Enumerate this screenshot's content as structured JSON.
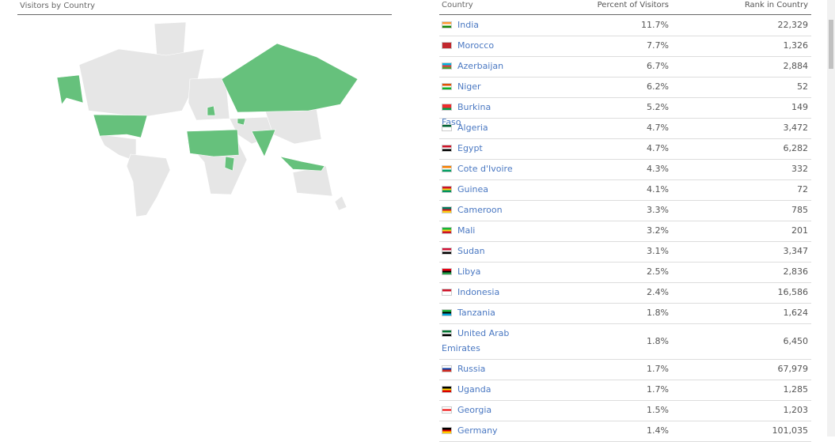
{
  "header": {
    "title": "Visitors by Country"
  },
  "table": {
    "columns": [
      "Country",
      "Percent of Visitors",
      "Rank in Country"
    ],
    "rows": [
      [
        "India",
        "11.7%",
        "22,329"
      ],
      [
        "Morocco",
        "7.7%",
        "1,326"
      ],
      [
        "Azerbaijan",
        "6.7%",
        "2,884"
      ],
      [
        "Niger",
        "6.2%",
        "52"
      ],
      [
        "Burkina Faso",
        "5.2%",
        "149"
      ],
      [
        "Algeria",
        "4.7%",
        "3,472"
      ],
      [
        "Egypt",
        "4.7%",
        "6,282"
      ],
      [
        "Cote d'Ivoire",
        "4.3%",
        "332"
      ],
      [
        "Guinea",
        "4.1%",
        "72"
      ],
      [
        "Cameroon",
        "3.3%",
        "785"
      ],
      [
        "Mali",
        "3.2%",
        "201"
      ],
      [
        "Sudan",
        "3.1%",
        "3,347"
      ],
      [
        "Libya",
        "2.5%",
        "2,836"
      ],
      [
        "Indonesia",
        "2.4%",
        "16,586"
      ],
      [
        "Tanzania",
        "1.8%",
        "1,624"
      ],
      [
        "United Arab Emirates",
        "1.8%",
        "6,450"
      ],
      [
        "Russia",
        "1.7%",
        "67,979"
      ],
      [
        "Uganda",
        "1.7%",
        "1,285"
      ],
      [
        "Georgia",
        "1.5%",
        "1,203"
      ],
      [
        "Germany",
        "1.4%",
        "101,035"
      ]
    ]
  }
}
